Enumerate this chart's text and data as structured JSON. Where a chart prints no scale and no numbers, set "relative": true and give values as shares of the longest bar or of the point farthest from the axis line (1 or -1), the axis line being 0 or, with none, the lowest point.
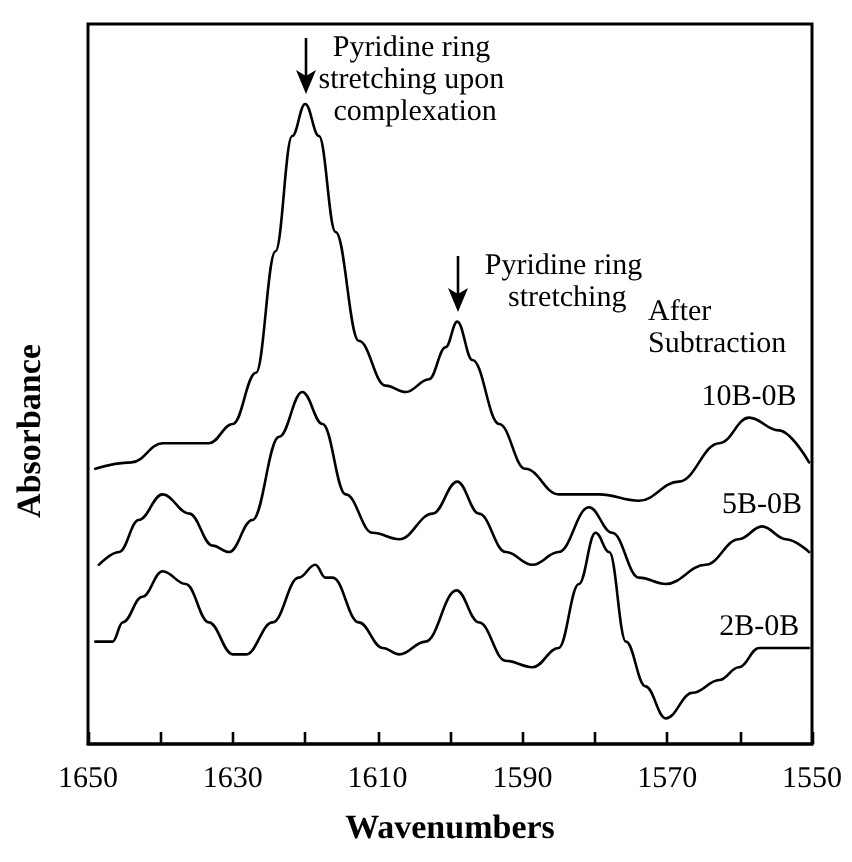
{
  "chart_data": {
    "type": "line",
    "relative": true,
    "xlabel": "Wavenumbers",
    "ylabel": "Absorbance",
    "xlim": [
      1650,
      1550
    ],
    "xticks": [
      1650,
      {
        "value": 1640,
        "label": null
      },
      1630,
      {
        "value": 1620,
        "label": null
      },
      1610,
      {
        "value": 1600,
        "label": null
      },
      1590,
      {
        "value": 1580,
        "label": null
      },
      1570,
      {
        "value": 1560,
        "label": null
      },
      1550
    ],
    "marker": "none",
    "line_style": "solid",
    "annotations": [
      {
        "text": "Pyridine ring stretching upon complexation",
        "x": 1620,
        "y": 1
      },
      {
        "text": "Pyridine ring stretching",
        "x": 1599,
        "y": 0.66
      },
      "After Subtraction"
    ],
    "series": [
      {
        "name": "10B-0B",
        "color": "#000000",
        "x": [
          1649,
          1644,
          1639.7,
          1636,
          1633.3,
          1630,
          1626.8,
          1624.1,
          1621.8,
          1620,
          1618.1,
          1615.8,
          1612.6,
          1608.9,
          1606.1,
          1602.9,
          1600.6,
          1599,
          1596.9,
          1593.2,
          1589.6,
          1585,
          1579.4,
          1573.9,
          1568.4,
          1562.8,
          1558.7,
          1554.6,
          1550.4
        ],
        "values": [
          0.43,
          0.44,
          0.47,
          0.47,
          0.47,
          0.5,
          0.58,
          0.77,
          0.95,
          1,
          0.95,
          0.8,
          0.63,
          0.56,
          0.55,
          0.57,
          0.62,
          0.66,
          0.6,
          0.5,
          0.43,
          0.39,
          0.39,
          0.38,
          0.41,
          0.47,
          0.51,
          0.49,
          0.44
        ]
      },
      {
        "name": "5B-0B",
        "color": "#000000",
        "x": [
          1648.5,
          1645.7,
          1643,
          1639.7,
          1636,
          1632.8,
          1630.5,
          1627.3,
          1623.6,
          1620.4,
          1617.6,
          1614.4,
          1610.7,
          1607,
          1602.4,
          1599,
          1596,
          1592.3,
          1588.6,
          1585,
          1580.8,
          1577.6,
          1573.9,
          1570.2,
          1564.7,
          1560.1,
          1556.9,
          1553.6,
          1550.4
        ],
        "values": [
          0.28,
          0.3,
          0.35,
          0.39,
          0.36,
          0.31,
          0.3,
          0.35,
          0.48,
          0.55,
          0.5,
          0.39,
          0.33,
          0.32,
          0.36,
          0.41,
          0.36,
          0.3,
          0.28,
          0.3,
          0.37,
          0.33,
          0.26,
          0.25,
          0.28,
          0.32,
          0.34,
          0.32,
          0.3
        ]
      },
      {
        "name": "2B-0B",
        "color": "#000000",
        "x": [
          1649,
          1646.6,
          1645.2,
          1642.5,
          1639.7,
          1636.5,
          1633.3,
          1630,
          1628.2,
          1624.5,
          1620.9,
          1618.6,
          1617.2,
          1616.2,
          1612.6,
          1609.3,
          1607,
          1603.4,
          1599.1,
          1596,
          1592.3,
          1588.6,
          1585,
          1582.2,
          1579.9,
          1578,
          1575.7,
          1573,
          1570.2,
          1566.5,
          1562.8,
          1560.1,
          1557.3,
          1554.6,
          1550.4
        ],
        "values": [
          0.16,
          0.16,
          0.19,
          0.23,
          0.27,
          0.25,
          0.19,
          0.14,
          0.14,
          0.19,
          0.26,
          0.28,
          0.26,
          0.26,
          0.19,
          0.15,
          0.14,
          0.16,
          0.24,
          0.19,
          0.13,
          0.12,
          0.15,
          0.25,
          0.33,
          0.3,
          0.16,
          0.09,
          0.04,
          0.08,
          0.1,
          0.12,
          0.15,
          0.15,
          0.15
        ]
      }
    ]
  }
}
